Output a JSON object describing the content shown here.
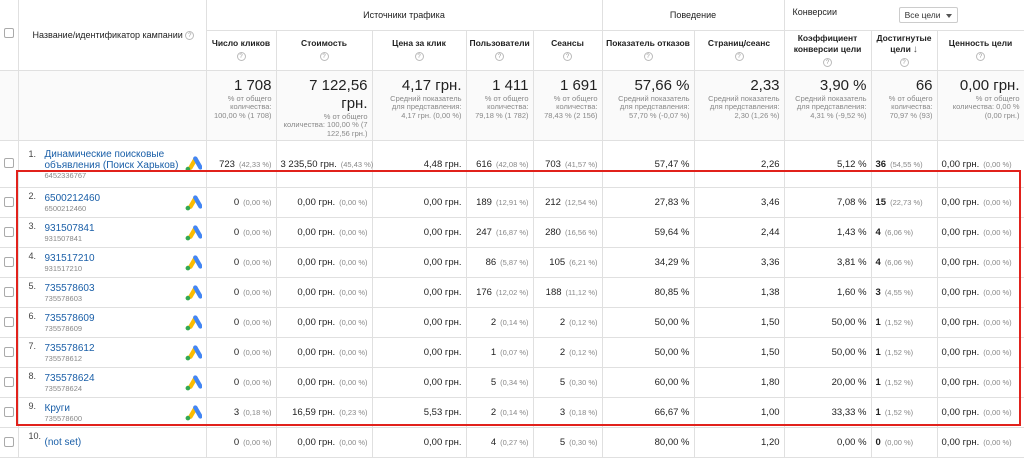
{
  "header": {
    "campaign_col": "Название/идентификатор кампании",
    "group_traffic": "Источники трафика",
    "group_behavior": "Поведение",
    "group_conversions": "Конверсии",
    "goal_select": "Все цели",
    "cols": [
      "Число кликов",
      "Стоимость",
      "Цена за клик",
      "Пользователи",
      "Сеансы",
      "Показатель отказов",
      "Страниц/сеанс",
      "Коэффициент конверсии цели",
      "Достигнутые цели",
      "Ценность цели"
    ]
  },
  "totals": [
    {
      "big": "1 708",
      "small": "% от общего количества: 100,00 % (1 708)"
    },
    {
      "big": "7 122,56 грн.",
      "small": "% от общего количества: 100,00 % (7 122,56 грн.)"
    },
    {
      "big": "4,17 грн.",
      "small": "Средний показатель для представления: 4,17 грн. (0,00 %)"
    },
    {
      "big": "1 411",
      "small": "% от общего количества: 79,18 % (1 782)"
    },
    {
      "big": "1 691",
      "small": "% от общего количества: 78,43 % (2 156)"
    },
    {
      "big": "57,66 %",
      "small": "Средний показатель для представления: 57,70 % (-0,07 %)"
    },
    {
      "big": "2,33",
      "small": "Средний показатель для представления: 2,30 (1,26 %)"
    },
    {
      "big": "3,90 %",
      "small": "Средний показатель для представления: 4,31 % (-9,52 %)"
    },
    {
      "big": "66",
      "small": "% от общего количества: 70,97 % (93)"
    },
    {
      "big": "0,00 грн.",
      "small": "% от общего количества: 0,00 % (0,00 грн.)"
    }
  ],
  "rows": [
    {
      "n": "1.",
      "name": "Динамические поисковые объявления (Поиск Харьков)",
      "id": "6452336767",
      "clicks": "723",
      "clicks_p": "(42,33 %)",
      "cost": "3 235,50 грн.",
      "cost_p": "(45,43 %)",
      "cpc": "4,48 грн.",
      "users": "616",
      "users_p": "(42,08 %)",
      "sessions": "703",
      "sessions_p": "(41,57 %)",
      "bounce": "57,47 %",
      "pages": "2,26",
      "conv": "5,12 %",
      "goals": "36",
      "goals_p": "(54,55 %)",
      "value": "0,00 грн.",
      "value_p": "(0,00 %)"
    },
    {
      "n": "2.",
      "name": "6500212460",
      "id": "6500212460",
      "clicks": "0",
      "clicks_p": "(0,00 %)",
      "cost": "0,00 грн.",
      "cost_p": "(0,00 %)",
      "cpc": "0,00 грн.",
      "users": "189",
      "users_p": "(12,91 %)",
      "sessions": "212",
      "sessions_p": "(12,54 %)",
      "bounce": "27,83 %",
      "pages": "3,46",
      "conv": "7,08 %",
      "goals": "15",
      "goals_p": "(22,73 %)",
      "value": "0,00 грн.",
      "value_p": "(0,00 %)"
    },
    {
      "n": "3.",
      "name": "931507841",
      "id": "931507841",
      "clicks": "0",
      "clicks_p": "(0,00 %)",
      "cost": "0,00 грн.",
      "cost_p": "(0,00 %)",
      "cpc": "0,00 грн.",
      "users": "247",
      "users_p": "(16,87 %)",
      "sessions": "280",
      "sessions_p": "(16,56 %)",
      "bounce": "59,64 %",
      "pages": "2,44",
      "conv": "1,43 %",
      "goals": "4",
      "goals_p": "(6,06 %)",
      "value": "0,00 грн.",
      "value_p": "(0,00 %)"
    },
    {
      "n": "4.",
      "name": "931517210",
      "id": "931517210",
      "clicks": "0",
      "clicks_p": "(0,00 %)",
      "cost": "0,00 грн.",
      "cost_p": "(0,00 %)",
      "cpc": "0,00 грн.",
      "users": "86",
      "users_p": "(5,87 %)",
      "sessions": "105",
      "sessions_p": "(6,21 %)",
      "bounce": "34,29 %",
      "pages": "3,36",
      "conv": "3,81 %",
      "goals": "4",
      "goals_p": "(6,06 %)",
      "value": "0,00 грн.",
      "value_p": "(0,00 %)"
    },
    {
      "n": "5.",
      "name": "735578603",
      "id": "735578603",
      "clicks": "0",
      "clicks_p": "(0,00 %)",
      "cost": "0,00 грн.",
      "cost_p": "(0,00 %)",
      "cpc": "0,00 грн.",
      "users": "176",
      "users_p": "(12,02 %)",
      "sessions": "188",
      "sessions_p": "(11,12 %)",
      "bounce": "80,85 %",
      "pages": "1,38",
      "conv": "1,60 %",
      "goals": "3",
      "goals_p": "(4,55 %)",
      "value": "0,00 грн.",
      "value_p": "(0,00 %)"
    },
    {
      "n": "6.",
      "name": "735578609",
      "id": "735578609",
      "clicks": "0",
      "clicks_p": "(0,00 %)",
      "cost": "0,00 грн.",
      "cost_p": "(0,00 %)",
      "cpc": "0,00 грн.",
      "users": "2",
      "users_p": "(0,14 %)",
      "sessions": "2",
      "sessions_p": "(0,12 %)",
      "bounce": "50,00 %",
      "pages": "1,50",
      "conv": "50,00 %",
      "goals": "1",
      "goals_p": "(1,52 %)",
      "value": "0,00 грн.",
      "value_p": "(0,00 %)"
    },
    {
      "n": "7.",
      "name": "735578612",
      "id": "735578612",
      "clicks": "0",
      "clicks_p": "(0,00 %)",
      "cost": "0,00 грн.",
      "cost_p": "(0,00 %)",
      "cpc": "0,00 грн.",
      "users": "1",
      "users_p": "(0,07 %)",
      "sessions": "2",
      "sessions_p": "(0,12 %)",
      "bounce": "50,00 %",
      "pages": "1,50",
      "conv": "50,00 %",
      "goals": "1",
      "goals_p": "(1,52 %)",
      "value": "0,00 грн.",
      "value_p": "(0,00 %)"
    },
    {
      "n": "8.",
      "name": "735578624",
      "id": "735578624",
      "clicks": "0",
      "clicks_p": "(0,00 %)",
      "cost": "0,00 грн.",
      "cost_p": "(0,00 %)",
      "cpc": "0,00 грн.",
      "users": "5",
      "users_p": "(0,34 %)",
      "sessions": "5",
      "sessions_p": "(0,30 %)",
      "bounce": "60,00 %",
      "pages": "1,80",
      "conv": "20,00 %",
      "goals": "1",
      "goals_p": "(1,52 %)",
      "value": "0,00 грн.",
      "value_p": "(0,00 %)"
    },
    {
      "n": "9.",
      "name": "Круги",
      "id": "735578600",
      "clicks": "3",
      "clicks_p": "(0,18 %)",
      "cost": "16,59 грн.",
      "cost_p": "(0,23 %)",
      "cpc": "5,53 грн.",
      "users": "2",
      "users_p": "(0,14 %)",
      "sessions": "3",
      "sessions_p": "(0,18 %)",
      "bounce": "66,67 %",
      "pages": "1,00",
      "conv": "33,33 %",
      "goals": "1",
      "goals_p": "(1,52 %)",
      "value": "0,00 грн.",
      "value_p": "(0,00 %)"
    },
    {
      "n": "10.",
      "name": "(not set)",
      "id": "",
      "clicks": "0",
      "clicks_p": "(0,00 %)",
      "cost": "0,00 грн.",
      "cost_p": "(0,00 %)",
      "cpc": "0,00 грн.",
      "users": "4",
      "users_p": "(0,27 %)",
      "sessions": "5",
      "sessions_p": "(0,30 %)",
      "bounce": "80,00 %",
      "pages": "1,20",
      "conv": "0,00 %",
      "goals": "0",
      "goals_p": "(0,00 %)",
      "value": "0,00 грн.",
      "value_p": "(0,00 %)"
    }
  ],
  "colors": {
    "link": "#1a5fa8",
    "highlight": "#e1211b",
    "ads_blue": "#4285f4",
    "ads_yellow": "#fbbc04",
    "ads_green": "#34a853"
  }
}
